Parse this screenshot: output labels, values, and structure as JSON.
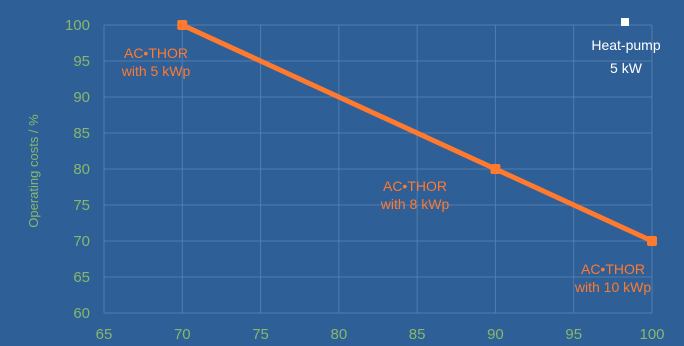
{
  "chart_data": {
    "type": "line",
    "title": "",
    "xlabel": "",
    "ylabel": "Operating costs / %",
    "xlim": [
      65,
      100
    ],
    "ylim": [
      60,
      100
    ],
    "x_ticks": [
      "65",
      "70",
      "75",
      "80",
      "85",
      "90",
      "95",
      "100"
    ],
    "y_ticks": [
      "100",
      "95",
      "90",
      "85",
      "80",
      "75",
      "70",
      "65",
      "60"
    ],
    "grid": true,
    "series": [
      {
        "color": "#ff7a2f",
        "points": [
          {
            "x": 70,
            "y": 100,
            "label": [
              "AC•THOR",
              "with 5 kWp"
            ]
          },
          {
            "x": 90,
            "y": 80,
            "label": [
              "AC•THOR",
              "with 8 kWp"
            ]
          },
          {
            "x": 100,
            "y": 70,
            "label": [
              "AC•THOR",
              "with 10 kWp"
            ]
          }
        ]
      }
    ],
    "legend": {
      "placement": "top-right",
      "marker_color": "#ffffff",
      "lines": [
        "Heat-pump",
        "5 kW"
      ]
    },
    "colors": {
      "background": "#2f5f97",
      "grid": "#5c86b7",
      "axis_text": "#86b86c",
      "series": "#ff7a2f",
      "legend": "#ffffff"
    }
  }
}
